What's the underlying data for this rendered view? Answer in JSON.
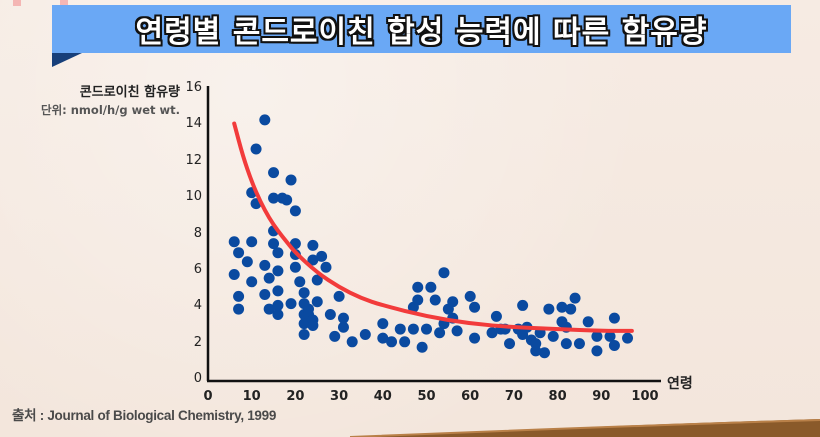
{
  "title": "연령별 콘드로이친 합성 능력에 따른 함유량",
  "colors": {
    "banner": "#6aa8f5",
    "banner_tail": "#173f7a",
    "points": "#0a4aa0",
    "trend": "#f23b3b",
    "axis": "#111111",
    "background": "#f5e9e0"
  },
  "axes": {
    "ylabel": "콘드로이친 함유량",
    "yunit": "단위: nmol/h/g wet wt.",
    "xlabel": "연령",
    "yticks": [
      "0",
      "2",
      "4",
      "6",
      "8",
      "10",
      "12",
      "14",
      "16"
    ],
    "xticks": [
      "0",
      "10",
      "20",
      "30",
      "40",
      "50",
      "60",
      "70",
      "80",
      "90",
      "100"
    ]
  },
  "source": "출처 : Journal of Biological Chemistry, 1999",
  "chart_data": {
    "type": "scatter",
    "title": "연령별 콘드로이친 합성 능력에 따른 함유량",
    "xlabel": "연령",
    "ylabel": "콘드로이친 함유량 (nmol/h/g wet wt.)",
    "xlim": [
      0,
      100
    ],
    "ylim": [
      0,
      16
    ],
    "grid": false,
    "legend": null,
    "series": [
      {
        "name": "samples",
        "points": [
          [
            6,
            7.6
          ],
          [
            7,
            7.0
          ],
          [
            6,
            5.8
          ],
          [
            7,
            4.6
          ],
          [
            7,
            3.9
          ],
          [
            9,
            6.5
          ],
          [
            10,
            7.6
          ],
          [
            10,
            5.4
          ],
          [
            11,
            9.7
          ],
          [
            10,
            10.3
          ],
          [
            11,
            12.7
          ],
          [
            13,
            6.3
          ],
          [
            13,
            4.7
          ],
          [
            13,
            14.3
          ],
          [
            14,
            5.6
          ],
          [
            14,
            3.9
          ],
          [
            15,
            11.4
          ],
          [
            15,
            10.0
          ],
          [
            15,
            8.2
          ],
          [
            15,
            7.5
          ],
          [
            16,
            7.0
          ],
          [
            16,
            6.0
          ],
          [
            16,
            4.9
          ],
          [
            16,
            4.1
          ],
          [
            16,
            3.6
          ],
          [
            17,
            10.0
          ],
          [
            18,
            9.9
          ],
          [
            19,
            11.0
          ],
          [
            19,
            4.2
          ],
          [
            20,
            9.3
          ],
          [
            20,
            7.5
          ],
          [
            20,
            6.9
          ],
          [
            20,
            6.2
          ],
          [
            21,
            5.4
          ],
          [
            22,
            4.8
          ],
          [
            22,
            4.2
          ],
          [
            22,
            3.6
          ],
          [
            22,
            3.1
          ],
          [
            22,
            2.5
          ],
          [
            23,
            3.9
          ],
          [
            23,
            3.6
          ],
          [
            24,
            7.4
          ],
          [
            24,
            6.6
          ],
          [
            24,
            3.3
          ],
          [
            24,
            3.0
          ],
          [
            25,
            5.5
          ],
          [
            25,
            4.3
          ],
          [
            26,
            6.8
          ],
          [
            27,
            6.2
          ],
          [
            28,
            3.6
          ],
          [
            29,
            2.4
          ],
          [
            30,
            4.6
          ],
          [
            31,
            2.9
          ],
          [
            31,
            3.4
          ],
          [
            33,
            2.1
          ],
          [
            36,
            2.5
          ],
          [
            40,
            3.1
          ],
          [
            40,
            2.3
          ],
          [
            42,
            2.1
          ],
          [
            44,
            2.8
          ],
          [
            45,
            2.1
          ],
          [
            47,
            4.0
          ],
          [
            47,
            2.8
          ],
          [
            48,
            5.1
          ],
          [
            48,
            4.4
          ],
          [
            49,
            1.8
          ],
          [
            50,
            2.8
          ],
          [
            51,
            5.1
          ],
          [
            52,
            4.4
          ],
          [
            53,
            2.6
          ],
          [
            54,
            3.1
          ],
          [
            54,
            5.9
          ],
          [
            55,
            3.9
          ],
          [
            56,
            4.3
          ],
          [
            56,
            3.4
          ],
          [
            57,
            2.7
          ],
          [
            60,
            4.6
          ],
          [
            61,
            4.0
          ],
          [
            61,
            2.3
          ],
          [
            65,
            2.6
          ],
          [
            66,
            3.5
          ],
          [
            67,
            2.8
          ],
          [
            68,
            2.8
          ],
          [
            69,
            2.0
          ],
          [
            71,
            2.8
          ],
          [
            72,
            4.1
          ],
          [
            72,
            2.5
          ],
          [
            73,
            2.9
          ],
          [
            74,
            2.2
          ],
          [
            75,
            1.6
          ],
          [
            75,
            2.0
          ],
          [
            76,
            2.6
          ],
          [
            77,
            1.5
          ],
          [
            78,
            3.9
          ],
          [
            79,
            2.4
          ],
          [
            81,
            4.0
          ],
          [
            81,
            3.2
          ],
          [
            82,
            2.0
          ],
          [
            82,
            2.9
          ],
          [
            83,
            3.9
          ],
          [
            84,
            4.5
          ],
          [
            85,
            2.0
          ],
          [
            87,
            3.2
          ],
          [
            89,
            2.4
          ],
          [
            89,
            1.6
          ],
          [
            92,
            2.4
          ],
          [
            93,
            3.4
          ],
          [
            93,
            1.9
          ],
          [
            96,
            2.3
          ]
        ]
      },
      {
        "name": "trend (fitted curve)",
        "type": "line",
        "x": [
          6,
          8,
          10,
          12,
          14,
          16,
          18,
          20,
          25,
          30,
          35,
          40,
          50,
          60,
          70,
          80,
          90,
          97
        ],
        "y": [
          14.1,
          12.3,
          10.9,
          9.8,
          8.9,
          8.2,
          7.6,
          7.0,
          5.9,
          5.1,
          4.5,
          4.1,
          3.5,
          3.1,
          2.9,
          2.8,
          2.7,
          2.7
        ]
      }
    ]
  }
}
